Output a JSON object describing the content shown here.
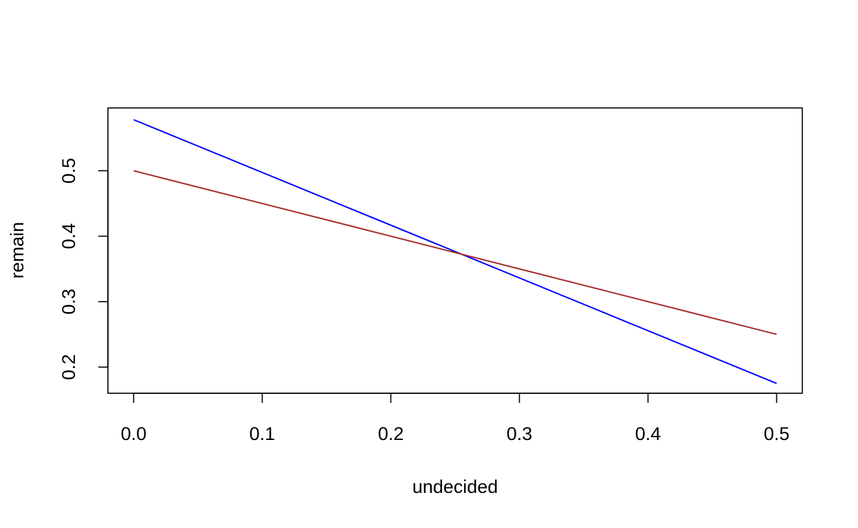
{
  "chart_data": {
    "type": "line",
    "title": "",
    "xlabel": "undecided",
    "ylabel": "remain",
    "xlim": [
      -0.02,
      0.52
    ],
    "ylim": [
      0.16,
      0.596
    ],
    "x_ticks": [
      0.0,
      0.1,
      0.2,
      0.3,
      0.4,
      0.5
    ],
    "x_tick_labels": [
      "0.0",
      "0.1",
      "0.2",
      "0.3",
      "0.4",
      "0.5"
    ],
    "y_ticks": [
      0.2,
      0.3,
      0.4,
      0.5
    ],
    "y_tick_labels": [
      "0.2",
      "0.3",
      "0.4",
      "0.5"
    ],
    "grid": false,
    "legend": "none",
    "series": [
      {
        "color": "#0000ff",
        "x": [
          0.0,
          0.5
        ],
        "y": [
          0.578,
          0.175
        ]
      },
      {
        "color": "#a52a2a",
        "x": [
          0.0,
          0.5
        ],
        "y": [
          0.5,
          0.25
        ]
      }
    ]
  }
}
